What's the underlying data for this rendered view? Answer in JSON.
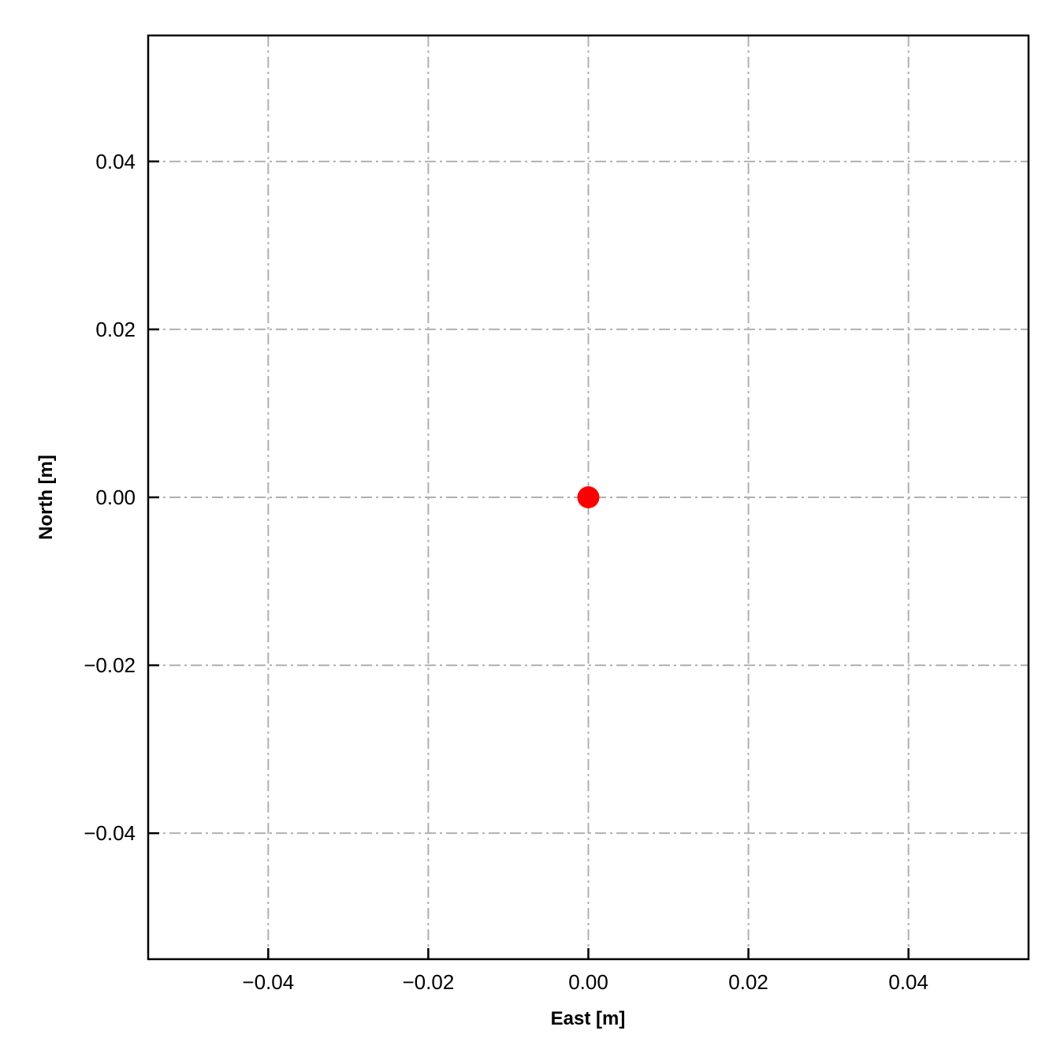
{
  "chart_data": {
    "type": "scatter",
    "title": "",
    "xlabel": "East [m]",
    "ylabel": "North [m]",
    "xlim": [
      -0.055,
      0.055
    ],
    "ylim": [
      -0.055,
      0.055
    ],
    "xticks": [
      -0.04,
      -0.02,
      0.0,
      0.02,
      0.04
    ],
    "yticks": [
      -0.04,
      -0.02,
      0.0,
      0.02,
      0.04
    ],
    "xtick_labels": [
      "−0.04",
      "−0.02",
      "0.00",
      "0.02",
      "0.04"
    ],
    "ytick_labels": [
      "−0.04",
      "−0.02",
      "0.00",
      "0.02",
      "0.04"
    ],
    "grid": true,
    "grid_style": "dash-dot",
    "grid_color": "#b0b0b0",
    "tick_direction": "in",
    "series": [
      {
        "x": [
          0.0
        ],
        "y": [
          0.0
        ],
        "color": "#ff0000",
        "marker": "circle"
      }
    ]
  }
}
